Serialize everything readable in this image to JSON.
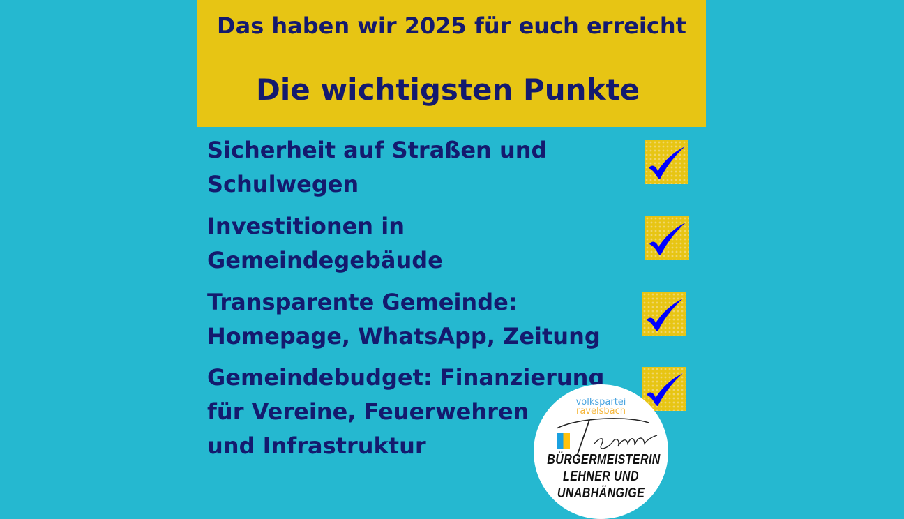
{
  "header": {
    "title": "Das haben wir 2025 für euch erreicht",
    "subtitle": "Die wichtigsten Punkte"
  },
  "items": [
    {
      "label": "Sicherheit auf Straßen und\nSchulwegen",
      "checked": true
    },
    {
      "label": "Investitionen in\nGemeindegebäude",
      "checked": true
    },
    {
      "label": "Transparente Gemeinde:\nHomepage, WhatsApp, Zeitung",
      "checked": true
    },
    {
      "label": "Gemeindebudget: Finanzierung\nfür Vereine, Feuerwehren\nund Infrastruktur",
      "checked": true
    }
  ],
  "logo": {
    "line1": "volkspartei",
    "line2": "ravelsbach",
    "script": "Team",
    "text1": "BÜRGERMEISTERIN",
    "text2": "LEHNER UND",
    "text3": "UNABHÄNGIGE"
  },
  "colors": {
    "background": "#25b8d0",
    "header": "#e7c514",
    "text": "#141a6e",
    "check": "#0000ff"
  },
  "icons": {
    "check": "checkmark-icon"
  }
}
